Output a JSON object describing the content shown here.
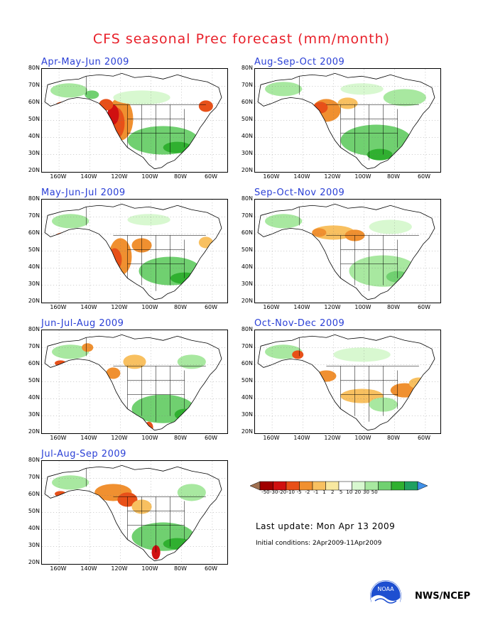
{
  "title": "CFS seasonal Prec forecast (mm/month)",
  "panels": [
    {
      "label": "Apr-May-Jun 2009"
    },
    {
      "label": "Aug-Sep-Oct 2009"
    },
    {
      "label": "May-Jun-Jul 2009"
    },
    {
      "label": "Sep-Oct-Nov 2009"
    },
    {
      "label": "Jun-Jul-Aug 2009"
    },
    {
      "label": "Oct-Nov-Dec 2009"
    },
    {
      "label": "Jul-Aug-Sep 2009"
    }
  ],
  "y_ticks": [
    "80N",
    "70N",
    "60N",
    "50N",
    "40N",
    "30N",
    "20N"
  ],
  "x_ticks": [
    "160W",
    "140W",
    "120W",
    "100W",
    "80W",
    "60W"
  ],
  "legend": {
    "labels": [
      "-50",
      "-30",
      "-20",
      "-10",
      "-5",
      "-2",
      "-1",
      "1",
      "2",
      "5",
      "10",
      "20",
      "30",
      "50"
    ],
    "colors": [
      "#a07050",
      "#a00000",
      "#d01010",
      "#e85018",
      "#f09030",
      "#f8c060",
      "#f8e8a0",
      "#ffffff",
      "#d8f8d0",
      "#a8e8a0",
      "#70d070",
      "#30b030",
      "#20a060",
      "#4090e8"
    ]
  },
  "last_update": "Last update: Mon Apr 13 2009",
  "initial_conditions": "Initial conditions: 2Apr2009-11Apr2009",
  "logo_text": "NOAA",
  "agency": "NWS/NCEP"
}
